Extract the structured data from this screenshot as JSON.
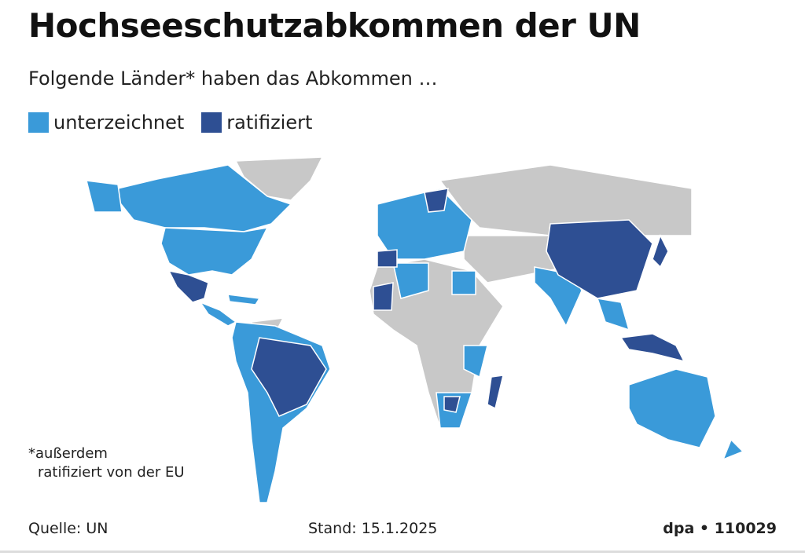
{
  "header": {
    "title": "Hochseeschutzabkommen der UN",
    "subtitle": "Folgende Länder* haben das Abkommen …"
  },
  "legend": [
    {
      "name": "unterzeichnet",
      "color": "#3a9ad9"
    },
    {
      "name": "ratifiziert",
      "color": "#2e4f93"
    }
  ],
  "footnote": [
    "*außerdem",
    "ratifiziert von der EU"
  ],
  "footer": {
    "source": "Quelle: UN",
    "date": "Stand: 15.1.2025",
    "id": "dpa • 110029"
  }
}
